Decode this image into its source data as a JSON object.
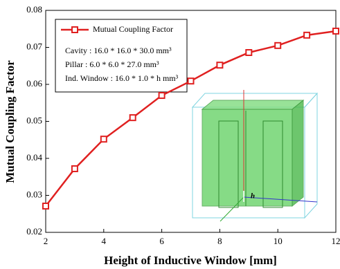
{
  "chart_data": {
    "type": "line",
    "x_label": "Height of Inductive Window [mm]",
    "y_label": "Mutual Coupling Factor",
    "x": [
      2,
      3,
      4,
      5,
      6,
      7,
      8,
      9,
      10,
      11,
      12
    ],
    "series": [
      {
        "name": "Mutual Coupling Factor",
        "color": "#e02020",
        "values": [
          0.0271,
          0.0372,
          0.0452,
          0.051,
          0.057,
          0.0609,
          0.0652,
          0.0686,
          0.0705,
          0.0733,
          0.0744
        ]
      }
    ],
    "xlim": [
      2,
      12
    ],
    "xticks": [
      2,
      4,
      6,
      8,
      10,
      12
    ],
    "ylim": [
      0.02,
      0.08
    ],
    "yticks": [
      0.02,
      0.03,
      0.04,
      0.05,
      0.06,
      0.07,
      0.08
    ],
    "annotations": [
      "Cavity : 16.0 * 16.0 * 30.0 mm³",
      "Pillar : 6.0 * 6.0 * 27.0 mm³",
      "Ind. Window : 16.0 * 1.0 * h mm³",
      "h"
    ],
    "legend_position": "upper left"
  }
}
